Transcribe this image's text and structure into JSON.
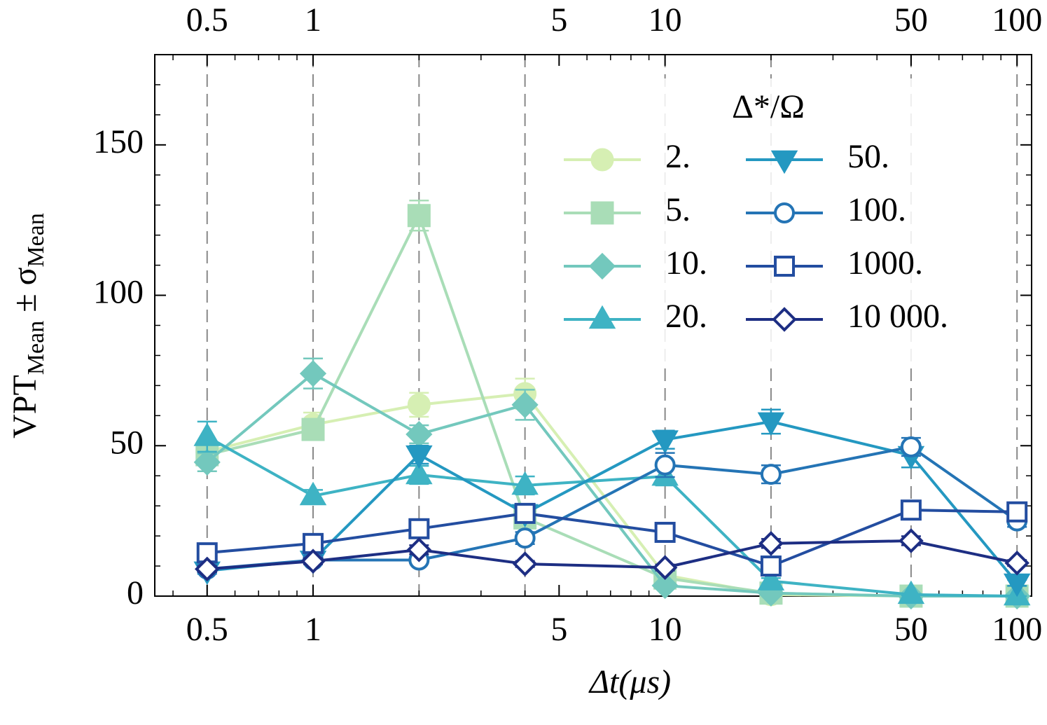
{
  "chart_data": {
    "type": "line",
    "xlabel": "Δt(μs)",
    "ylabel": [
      "VPT",
      "Mean",
      " ± σ",
      "Mean"
    ],
    "x": [
      0.5,
      1,
      2,
      4,
      10,
      20,
      50,
      100
    ],
    "xscale": "log",
    "xlim": [
      0.355,
      110
    ],
    "ylim": [
      0,
      180
    ],
    "xticks": [
      0.5,
      1,
      5,
      10,
      50,
      100
    ],
    "xminorticks": [
      0.4,
      0.6,
      0.7,
      0.8,
      0.9,
      2,
      3,
      4,
      6,
      7,
      8,
      9,
      20,
      30,
      40,
      60,
      70,
      80,
      90
    ],
    "yticks": [
      0,
      50,
      100,
      150
    ],
    "yminorticks": [
      10,
      20,
      30,
      40,
      60,
      70,
      80,
      90,
      110,
      120,
      130,
      140,
      160,
      170
    ],
    "legend_title": "Δ*/Ω",
    "legend": "upper right",
    "series": [
      {
        "name": "2.",
        "color": "#d6efb3",
        "marker": "circle",
        "values": [
          48,
          57,
          63.6,
          67.3,
          7,
          0.5,
          0,
          0
        ],
        "errors": [
          3,
          4,
          4,
          5,
          1,
          0.2,
          0,
          0
        ]
      },
      {
        "name": "5.",
        "color": "#a9ddb7",
        "marker": "square",
        "values": [
          47,
          55.4,
          126.5,
          26,
          6,
          1,
          0,
          0
        ],
        "errors": [
          3,
          3,
          5,
          2,
          1,
          0.3,
          0,
          0
        ]
      },
      {
        "name": "10.",
        "color": "#73c8bd",
        "marker": "diamond",
        "values": [
          44.5,
          74,
          53.8,
          63.6,
          3.5,
          1,
          0,
          0
        ],
        "errors": [
          3,
          5,
          3,
          5,
          0.8,
          0.3,
          0,
          0
        ]
      },
      {
        "name": "20.",
        "color": "#3eb3c4",
        "marker": "triangle-up",
        "values": [
          53,
          33.3,
          40.3,
          36.8,
          39.8,
          5,
          0.5,
          0
        ],
        "errors": [
          5,
          2,
          3,
          3,
          3,
          1,
          0.2,
          0
        ]
      },
      {
        "name": "50.",
        "color": "#2498c1",
        "marker": "triangle-down",
        "values": [
          8.4,
          12,
          47,
          27.5,
          52,
          58,
          46.8,
          4.4
        ],
        "errors": [
          1,
          1,
          3,
          2,
          3,
          4,
          4,
          1
        ]
      },
      {
        "name": "100.",
        "color": "#2474b5",
        "marker": "circle-open",
        "values": [
          9,
          12,
          12,
          19.3,
          43.6,
          40.5,
          49.6,
          25
        ],
        "errors": [
          1,
          1,
          1,
          2,
          4,
          3,
          3,
          2
        ]
      },
      {
        "name": "1000.",
        "color": "#234da0",
        "marker": "square-open",
        "values": [
          14.4,
          17.5,
          22.4,
          27.5,
          21.2,
          10,
          28.6,
          28
        ],
        "errors": [
          1,
          1.5,
          2,
          2,
          2,
          1,
          2,
          2
        ]
      },
      {
        "name": "10 000.",
        "color": "#1d2e83",
        "marker": "diamond-open",
        "values": [
          9,
          11.6,
          15.4,
          10.7,
          9.5,
          17.5,
          18.4,
          11
        ],
        "errors": [
          1,
          1,
          1.5,
          1,
          1,
          1.5,
          1.5,
          1
        ]
      }
    ]
  }
}
